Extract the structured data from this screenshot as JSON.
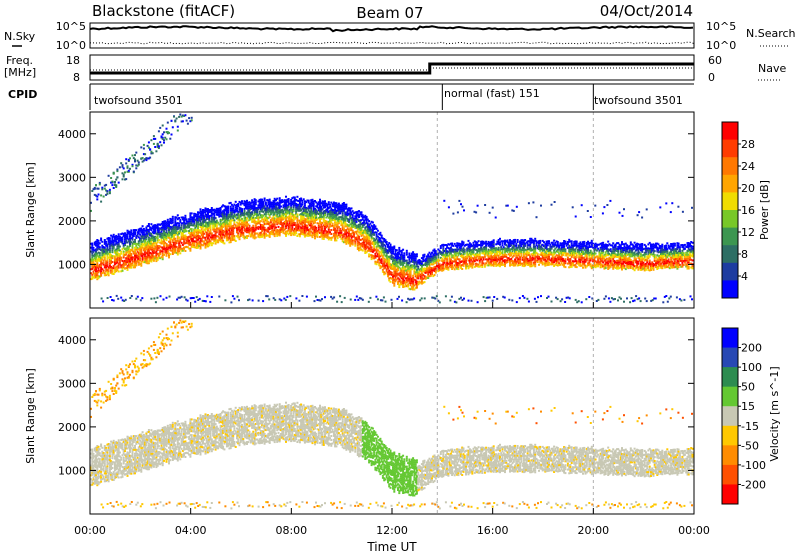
{
  "header": {
    "title": "Blackstone (fitACF)",
    "beam": "Beam 07",
    "date": "04/Oct/2014"
  },
  "top_panels": {
    "nsky_label": "N.Sky",
    "nsky_ticks": [
      "10^5",
      "10^0"
    ],
    "nsearch_label": "N.Search",
    "nsearch_ticks": [
      "10^5",
      "10^0"
    ],
    "freq_label_1": "Freq.",
    "freq_label_2": "[MHz]",
    "freq_ticks": [
      "18",
      "8"
    ],
    "nave_label": "Nave",
    "nave_ticks": [
      "60",
      "0"
    ],
    "cpid_label": "CPID",
    "cpid_segments": [
      {
        "label": "twofsound 3501",
        "start_hour": 0,
        "end_hour": 14
      },
      {
        "label": "normal (fast) 151",
        "start_hour": 14,
        "end_hour": 20
      },
      {
        "label": "twofsound 3501",
        "start_hour": 20,
        "end_hour": 24
      }
    ]
  },
  "colors": {
    "power_scale": [
      "#0000ff",
      "#1e3ca0",
      "#2d6e64",
      "#3c9650",
      "#78c828",
      "#f0dc00",
      "#ffa500",
      "#ff7800",
      "#ff3c00",
      "#ff0000"
    ],
    "velocity_scale": [
      "#0000ff",
      "#2848b4",
      "#2d8c50",
      "#64c832",
      "#c8c8b4",
      "#ffc800",
      "#ff8c00",
      "#ff5000",
      "#ff0000"
    ],
    "background": "#ffffff",
    "gate_gray": "#c8c8c0"
  },
  "chart_data": [
    {
      "type": "heatmap",
      "title": "",
      "xlabel": "",
      "ylabel": "Slant Range [km]",
      "xlim": [
        0,
        24
      ],
      "ylim": [
        0,
        4500
      ],
      "yticks": [
        "1000",
        "2000",
        "3000",
        "4000"
      ],
      "colorbar_label": "Power [dB]",
      "colorbar_ticks": [
        "28",
        "24",
        "20",
        "16",
        "12",
        "8",
        "4"
      ],
      "colorbar_range": [
        0,
        30
      ],
      "echo_band_center_km": [
        [
          0,
          1100
        ],
        [
          2,
          1450
        ],
        [
          4,
          1800
        ],
        [
          6,
          2050
        ],
        [
          8,
          2150
        ],
        [
          10,
          2000
        ],
        [
          11,
          1700
        ],
        [
          12,
          1000
        ],
        [
          13,
          850
        ],
        [
          14,
          1200
        ],
        [
          16,
          1300
        ],
        [
          18,
          1300
        ],
        [
          20,
          1250
        ],
        [
          22,
          1200
        ],
        [
          24,
          1250
        ]
      ]
    },
    {
      "type": "heatmap",
      "title": "",
      "xlabel": "Time UT",
      "ylabel": "Slant Range [km]",
      "xlim": [
        0,
        24
      ],
      "ylim": [
        0,
        4500
      ],
      "xticks": [
        "00:00",
        "04:00",
        "08:00",
        "12:00",
        "16:00",
        "20:00",
        "00:00"
      ],
      "yticks": [
        "1000",
        "2000",
        "3000",
        "4000"
      ],
      "colorbar_label": "Velocity [m s^-1]",
      "colorbar_ticks": [
        "200",
        "100",
        "50",
        "15",
        "-15",
        "-50",
        "-100",
        "-200"
      ],
      "colorbar_range": [
        -250,
        250
      ]
    }
  ]
}
